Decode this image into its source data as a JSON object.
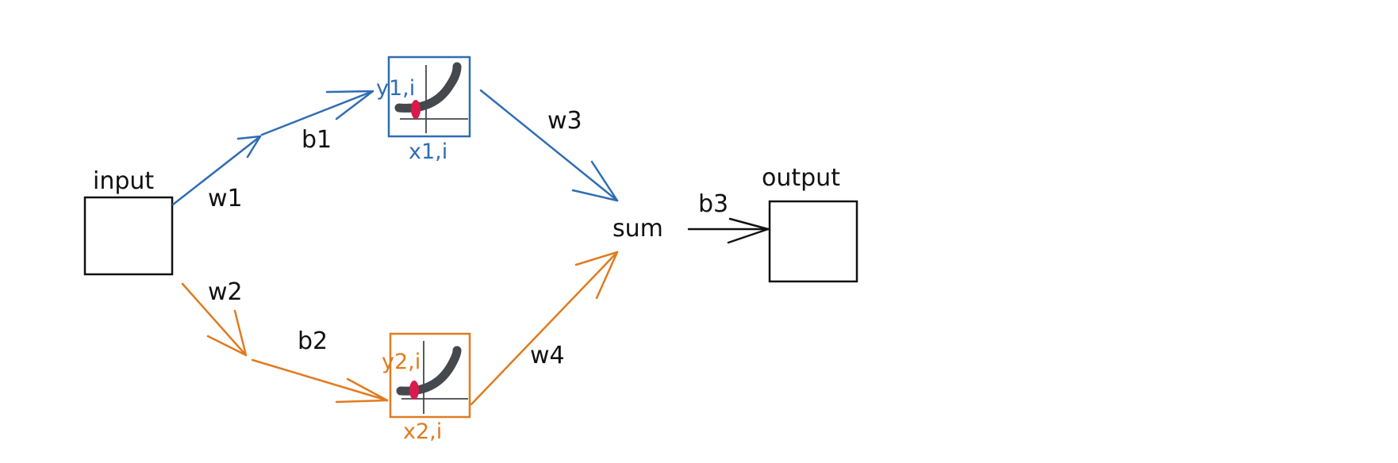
{
  "colors": {
    "ink": "#111111",
    "blue": "#2f6db3",
    "orange": "#e07b1f",
    "activation_curve": "#45484d",
    "point": "#d81b4a"
  },
  "nodes": {
    "input": "input",
    "output": "output",
    "sum": "sum"
  },
  "weights": {
    "w1": "w1",
    "w2": "w2",
    "w3": "w3",
    "w4": "w4"
  },
  "biases": {
    "b1": "b1",
    "b2": "b2",
    "b3": "b3"
  },
  "activation_top": {
    "y_label": "y1,i",
    "x_label": "x1,i"
  },
  "activation_bottom": {
    "y_label": "y2,i",
    "x_label": "x2,i"
  }
}
